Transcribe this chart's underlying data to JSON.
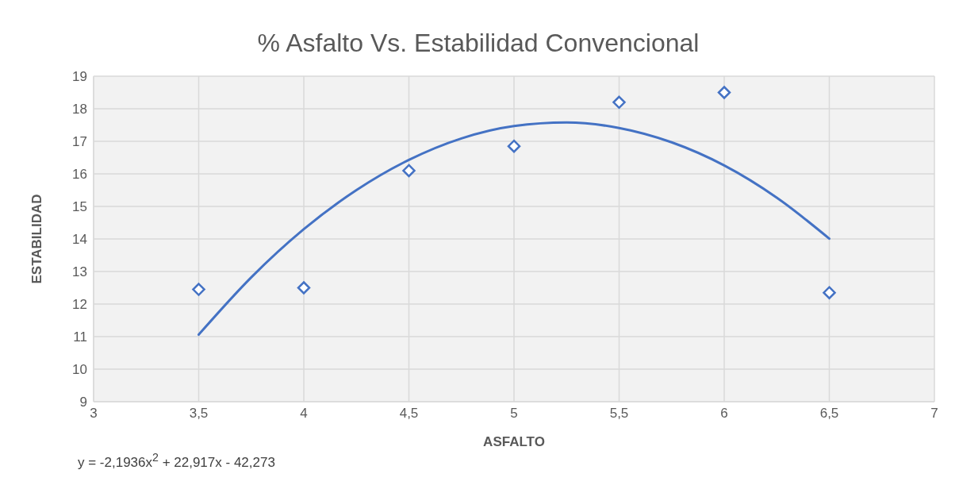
{
  "chart_data": {
    "type": "scatter",
    "title": "% Asfalto Vs. Estabilidad Convencional",
    "xlabel": "ASFALTO",
    "ylabel": "ESTABILIDAD",
    "series": [
      {
        "color": "#4472c4",
        "marker": "diamond",
        "x": [
          3.5,
          4,
          4.5,
          5,
          5.5,
          6,
          6.5
        ],
        "values": [
          12.45,
          12.5,
          16.1,
          16.85,
          18.2,
          18.5,
          12.35
        ]
      },
      {
        "type": "line",
        "color": "#4472c4",
        "marker": "none",
        "line_style": "solid",
        "x": [
          3.5,
          3.75,
          4,
          4.25,
          4.5,
          4.75,
          5,
          5.25,
          5.5,
          5.75,
          6,
          6.25,
          6.5
        ],
        "values": [
          11.06,
          12.82,
          14.3,
          15.5,
          16.43,
          17.09,
          17.47,
          17.58,
          17.41,
          16.97,
          16.26,
          15.27,
          14.01
        ]
      }
    ],
    "xlim": [
      3,
      7
    ],
    "xticks": [
      3,
      {
        "value": 3.5,
        "label": "3,5"
      },
      4,
      {
        "value": 4.5,
        "label": "4,5"
      },
      5,
      {
        "value": 5.5,
        "label": "5,5"
      },
      6,
      {
        "value": 6.5,
        "label": "6,5"
      },
      7
    ],
    "ylim": [
      9,
      19
    ],
    "yticks": [
      9,
      10,
      11,
      12,
      13,
      14,
      15,
      16,
      17,
      18,
      19
    ],
    "grid": true,
    "annotations": [
      "y = -2,1936x$^{2}$ + 22,917x - 42,273"
    ]
  }
}
